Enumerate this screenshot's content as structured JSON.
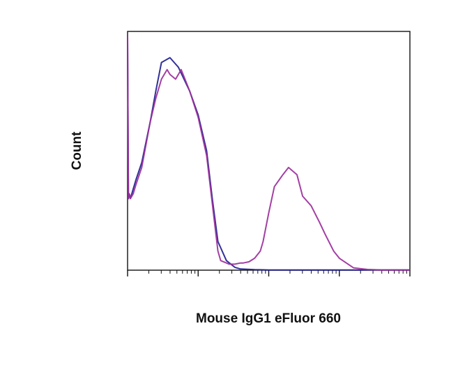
{
  "chart_data": {
    "type": "line",
    "title": "",
    "xlabel": "Mouse IgG1 eFluor 660",
    "ylabel": "Count",
    "x_scale": "log",
    "xlim": [
      0,
      100
    ],
    "ylim": [
      0,
      100
    ],
    "grid": false,
    "legend": "none",
    "series": [
      {
        "color": "#1f1f8f",
        "x": [
          0,
          0.3,
          0.6,
          1,
          2,
          3,
          5,
          8,
          10,
          12,
          15,
          18,
          20,
          22,
          25,
          28,
          30,
          32,
          35,
          38,
          40,
          45,
          50,
          60,
          80,
          100
        ],
        "y": [
          98,
          30,
          32,
          30,
          34,
          38,
          45,
          62,
          75,
          87,
          89,
          85,
          80,
          75,
          65,
          50,
          30,
          12,
          4,
          1.2,
          0.5,
          0.2,
          0.1,
          0.1,
          0.1,
          0.1
        ]
      },
      {
        "color": "#9b2f9b",
        "x": [
          0,
          0.3,
          0.6,
          1,
          2,
          3,
          5,
          8,
          10,
          12,
          14,
          15,
          17,
          19,
          20,
          22,
          25,
          28,
          30,
          32,
          33,
          35,
          36,
          38,
          40,
          41,
          43,
          45,
          47,
          48,
          50,
          52,
          55,
          57,
          60,
          62,
          65,
          68,
          70,
          73,
          75,
          80,
          85,
          90,
          100
        ],
        "y": [
          98,
          30,
          32,
          30,
          32,
          36,
          43,
          62,
          72,
          80,
          84,
          82,
          80,
          84,
          81,
          75,
          64,
          48,
          28,
          8,
          4,
          3,
          2.5,
          2.5,
          3,
          3,
          3.5,
          5,
          8,
          12,
          24,
          35,
          40,
          43,
          40,
          31,
          27,
          20,
          15,
          8,
          5,
          1,
          0.3,
          0.1,
          0.1
        ]
      }
    ]
  }
}
